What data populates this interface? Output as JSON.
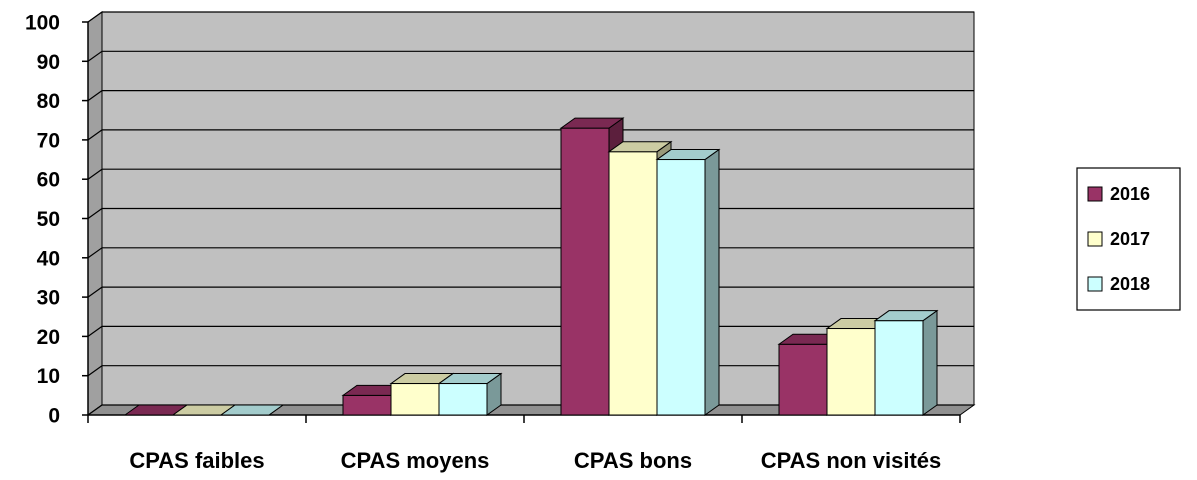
{
  "chart_data": {
    "type": "bar3d",
    "categories": [
      "CPAS faibles",
      "CPAS moyens",
      "CPAS bons",
      "CPAS non visités"
    ],
    "series": [
      {
        "name": "2016",
        "color": "#993366",
        "values": [
          0,
          5,
          73,
          18
        ]
      },
      {
        "name": "2017",
        "color": "#ffffcc",
        "values": [
          0,
          8,
          67,
          22
        ]
      },
      {
        "name": "2018",
        "color": "#ccffff",
        "values": [
          0,
          8,
          65,
          24
        ]
      }
    ],
    "ylim": [
      0,
      100
    ],
    "yticks": [
      0,
      10,
      20,
      30,
      40,
      50,
      60,
      70,
      80,
      90,
      100
    ],
    "grid": true,
    "legend": "right"
  }
}
